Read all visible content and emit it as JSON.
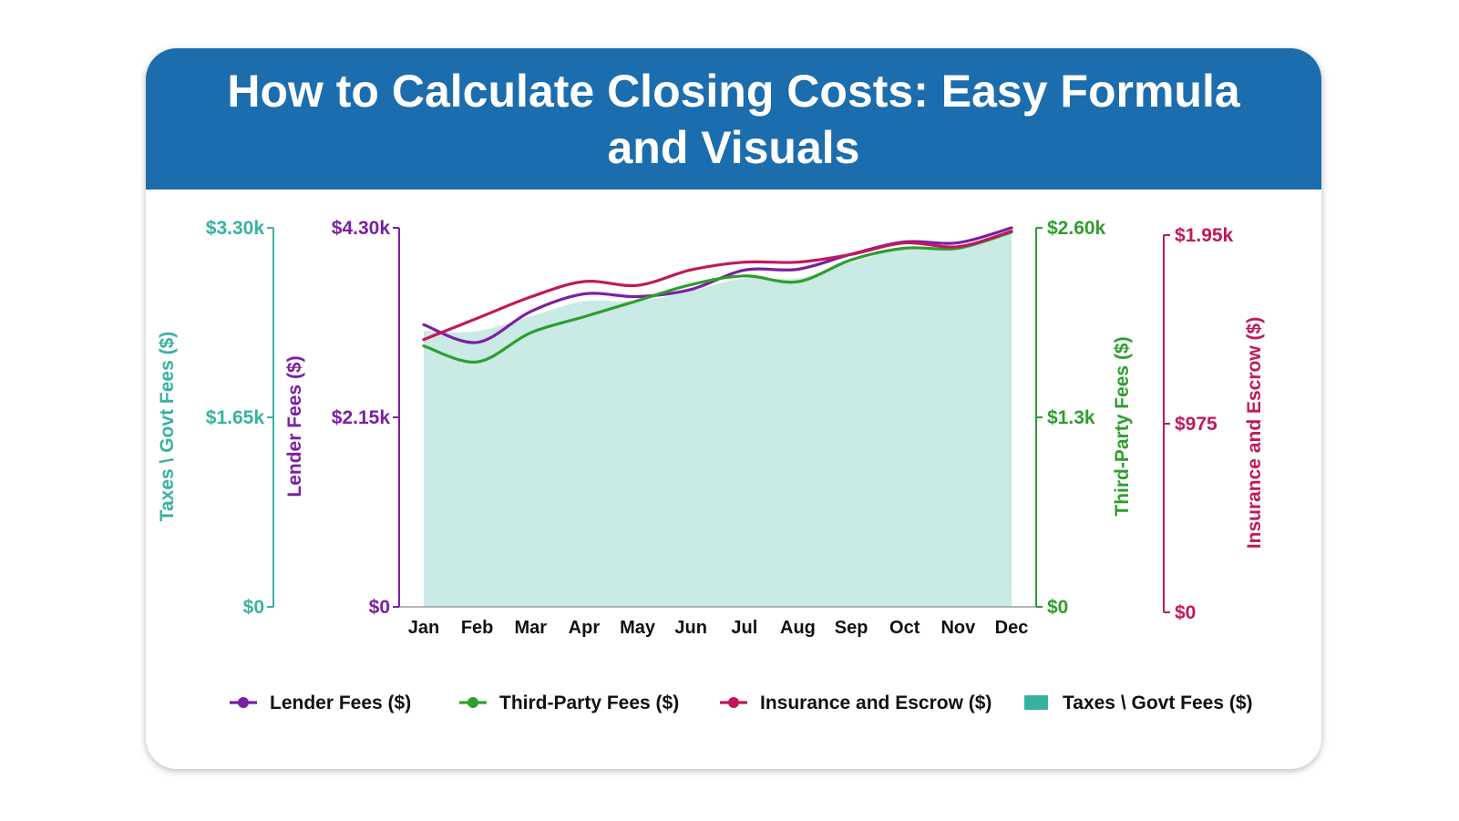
{
  "title": "How to Calculate Closing Costs: Easy Formula and Visuals",
  "chart_data": {
    "type": "line",
    "categories": [
      "Jan",
      "Feb",
      "Mar",
      "Apr",
      "May",
      "Jun",
      "Jul",
      "Aug",
      "Sep",
      "Oct",
      "Nov",
      "Dec"
    ],
    "series": [
      {
        "name": "Lender Fees ($)",
        "kind": "line",
        "axis": "lender",
        "color": "#7b1fa2",
        "values": [
          3200,
          3000,
          3350,
          3550,
          3520,
          3600,
          3820,
          3830,
          4000,
          4140,
          4130,
          4300
        ]
      },
      {
        "name": "Third-Party Fees ($)",
        "kind": "line",
        "axis": "third_party",
        "color": "#2e9e2e",
        "values": [
          1790,
          1680,
          1880,
          1990,
          2100,
          2210,
          2270,
          2230,
          2380,
          2460,
          2460,
          2570
        ]
      },
      {
        "name": "Insurance and Escrow ($)",
        "kind": "line",
        "axis": "insurance",
        "color": "#c2185b",
        "values": [
          1410,
          1520,
          1630,
          1710,
          1690,
          1770,
          1810,
          1810,
          1850,
          1910,
          1890,
          1970
        ]
      },
      {
        "name": "Taxes \\ Govt Fees ($)",
        "kind": "area",
        "axis": "taxes",
        "color": "#38b2a0",
        "values": [
          2400,
          2400,
          2530,
          2660,
          2660,
          2750,
          2860,
          2860,
          3000,
          3120,
          3120,
          3270
        ]
      }
    ],
    "axes": {
      "taxes": {
        "label": "Taxes \\ Govt Fees ($)",
        "color": "#38b2a0",
        "range": [
          0,
          3300
        ],
        "ticks": [
          "$0",
          "$1.65k",
          "$3.30k"
        ]
      },
      "lender": {
        "label": "Lender Fees ($)",
        "color": "#7b1fa2",
        "range": [
          0,
          4300
        ],
        "ticks": [
          "$0",
          "$2.15k",
          "$4.30k"
        ]
      },
      "third_party": {
        "label": "Third-Party Fees ($)",
        "color": "#2e9e2e",
        "range": [
          0,
          2600
        ],
        "ticks": [
          "$0",
          "$1.3k",
          "$2.60k"
        ]
      },
      "insurance": {
        "label": "Insurance and Escrow ($)",
        "color": "#c2185b",
        "range": [
          0,
          1950
        ],
        "ticks": [
          "$0",
          "$975",
          "$1.95k"
        ]
      }
    },
    "grid": false,
    "legend_position": "bottom"
  }
}
